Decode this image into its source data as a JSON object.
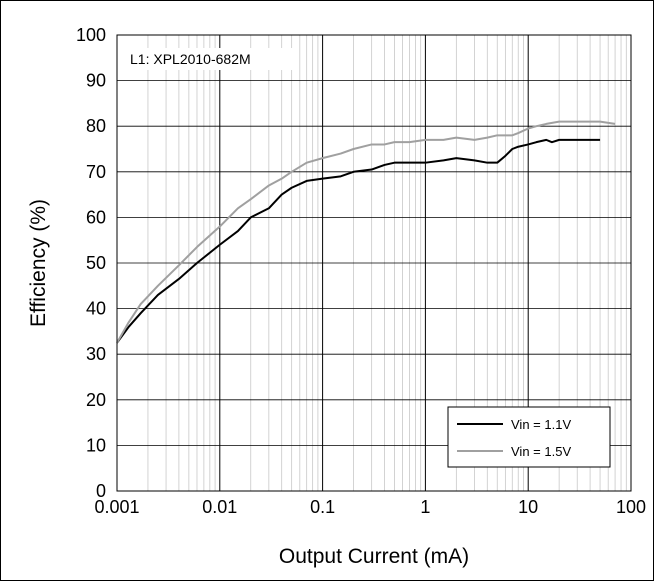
{
  "chart_data": {
    "type": "line",
    "xlabel": "Output Current (mA)",
    "ylabel": "Efficiency (%)",
    "x_scale": "log",
    "xlim": [
      0.001,
      100
    ],
    "ylim": [
      0,
      100
    ],
    "x_ticks": [
      "0.001",
      "0.01",
      "0.1",
      "1",
      "10",
      "100"
    ],
    "y_ticks": [
      "0",
      "10",
      "20",
      "30",
      "40",
      "50",
      "60",
      "70",
      "80",
      "90",
      "100"
    ],
    "grid": true,
    "annotation": "L1: XPL2010-682M",
    "legend_position": "bottom-right",
    "series": [
      {
        "name": "Vin = 1.1V",
        "color": "#000000",
        "x": [
          0.001,
          0.0013,
          0.0017,
          0.0025,
          0.004,
          0.006,
          0.01,
          0.015,
          0.02,
          0.03,
          0.04,
          0.05,
          0.07,
          0.1,
          0.15,
          0.2,
          0.3,
          0.4,
          0.5,
          0.7,
          1,
          1.5,
          2,
          3,
          4,
          5,
          6,
          7,
          8,
          10,
          12,
          15,
          17,
          20,
          30,
          50
        ],
        "values": [
          32.5,
          36,
          39,
          43,
          46.5,
          50,
          54,
          57,
          60,
          62,
          65,
          66.5,
          68,
          68.5,
          69,
          70,
          70.5,
          71.5,
          72,
          72,
          72,
          72.5,
          73,
          72.5,
          72,
          72,
          73.5,
          75,
          75.5,
          76,
          76.5,
          77,
          76.5,
          77,
          77,
          77
        ]
      },
      {
        "name": "Vin = 1.5V",
        "color": "#a0a0a0",
        "x": [
          0.001,
          0.0013,
          0.0017,
          0.0025,
          0.004,
          0.006,
          0.01,
          0.015,
          0.02,
          0.03,
          0.04,
          0.05,
          0.07,
          0.1,
          0.15,
          0.2,
          0.3,
          0.4,
          0.5,
          0.7,
          1,
          1.5,
          2,
          3,
          4,
          5,
          6,
          7,
          8,
          10,
          12,
          15,
          20,
          30,
          50,
          70
        ],
        "values": [
          32.5,
          37,
          41,
          45,
          49.5,
          53.5,
          58,
          62,
          64,
          67,
          68.5,
          70,
          72,
          73,
          74,
          75,
          76,
          76,
          76.5,
          76.5,
          77,
          77,
          77.5,
          77,
          77.5,
          78,
          78,
          78,
          78.5,
          79.5,
          80,
          80.5,
          81,
          81,
          81,
          80.5
        ]
      }
    ]
  }
}
